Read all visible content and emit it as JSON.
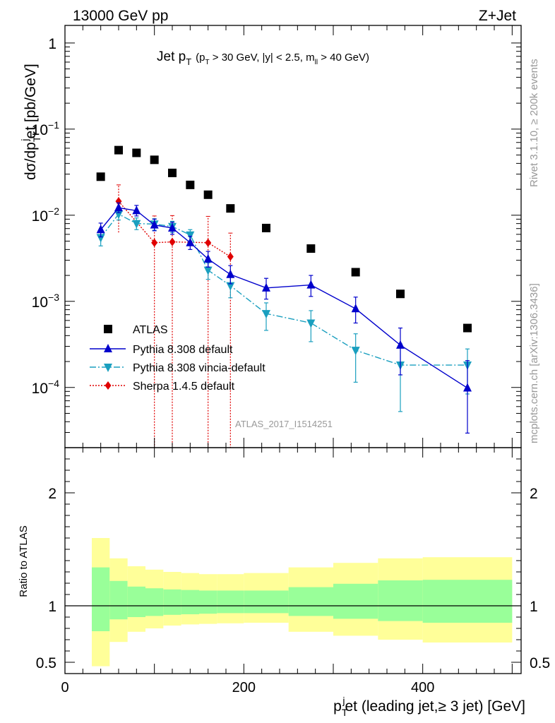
{
  "header": {
    "left": "13000 GeV pp",
    "right": "Z+Jet"
  },
  "side_text": {
    "rivet": "Rivet 3.1.10, ≥ 200k events",
    "mcplots": "mcplots.cern.ch [arXiv:1306.3436]"
  },
  "colors": {
    "atlas": "#000000",
    "pythia_default": "#0000cc",
    "pythia_vincia": "#1a9fbf",
    "sherpa": "#e00000",
    "band_inner": "#99ff99",
    "band_outer": "#ffff99"
  },
  "chart_data": {
    "type": "scatter",
    "title": {
      "main": "Jet p",
      "main_sub": "T",
      "cuts_a": "(p",
      "cuts_a_sub": "T",
      "cuts_b": " > 30 GeV, |y| < 2.5, m",
      "cuts_b_sub": "ll",
      "cuts_c": " > 40 GeV)"
    },
    "ylabel": {
      "a": "dσ/dp",
      "a_sub": "T",
      "a_sup": "j",
      "b": "et [pb/GeV]"
    },
    "xlabel": {
      "a": "p",
      "a_sub": "T",
      "a_sup": "j",
      "b": "et (leading jet,≥ 3 jet) [GeV]"
    },
    "ratio_ylabel": "Ratio to ATLAS",
    "watermark": "ATLAS_2017_I1514251",
    "xlim": [
      0,
      510
    ],
    "ylim": [
      2e-05,
      1.6
    ],
    "ratio_ylim": [
      0.4,
      2.4
    ],
    "yscale": "log",
    "x_ticks": [
      0,
      200,
      400
    ],
    "y_ticks": [
      {
        "v": 1,
        "base": "1",
        "exp": ""
      },
      {
        "v": 0.1,
        "base": "10",
        "exp": "−1"
      },
      {
        "v": 0.01,
        "base": "10",
        "exp": "−2"
      },
      {
        "v": 0.001,
        "base": "10",
        "exp": "−3"
      },
      {
        "v": 0.0001,
        "base": "10",
        "exp": "−4"
      }
    ],
    "ratio_ticks": [
      {
        "v": 2,
        "label": "2"
      },
      {
        "v": 1,
        "label": "1"
      },
      {
        "v": 0.5,
        "label": "0.5"
      }
    ],
    "bins": [
      [
        30,
        50
      ],
      [
        50,
        70
      ],
      [
        70,
        90
      ],
      [
        90,
        110
      ],
      [
        110,
        130
      ],
      [
        130,
        150
      ],
      [
        150,
        170
      ],
      [
        170,
        200
      ],
      [
        200,
        250
      ],
      [
        250,
        300
      ],
      [
        300,
        350
      ],
      [
        350,
        400
      ],
      [
        400,
        500
      ]
    ],
    "legend": {
      "placement": "lower-left",
      "entries": [
        "ATLAS",
        "Pythia 8.308 default",
        "Pythia 8.308 vincia-default",
        "Sherpa 1.4.5 default"
      ]
    },
    "series": [
      {
        "name": "ATLAS",
        "marker": "square",
        "x": [
          40,
          60,
          80,
          100,
          120,
          140,
          160,
          185,
          225,
          275,
          325,
          375,
          450
        ],
        "y": [
          0.028,
          0.057,
          0.053,
          0.044,
          0.031,
          0.0225,
          0.0173,
          0.012,
          0.0071,
          0.0041,
          0.00218,
          0.00122,
          0.00049
        ]
      },
      {
        "name": "Pythia 8.308 default",
        "marker": "triangle-up",
        "line": "solid",
        "x": [
          40,
          60,
          80,
          100,
          120,
          140,
          160,
          185,
          225,
          275,
          325,
          375,
          450
        ],
        "y": [
          0.0068,
          0.0122,
          0.0113,
          0.0077,
          0.0071,
          0.0048,
          0.0031,
          0.00205,
          0.00143,
          0.00155,
          0.00082,
          0.00031,
          9.85e-05
        ],
        "yerr_lo": [
          0.0056,
          0.0107,
          0.0098,
          0.0066,
          0.006,
          0.004,
          0.0025,
          0.0016,
          0.00106,
          0.00114,
          0.00056,
          0.00014,
          2.95e-05
        ],
        "yerr_hi": [
          0.0081,
          0.0139,
          0.013,
          0.009,
          0.0083,
          0.0057,
          0.0038,
          0.0026,
          0.00185,
          0.002,
          0.00112,
          0.00049,
          0.000205
        ]
      },
      {
        "name": "Pythia 8.308 vincia-default",
        "marker": "triangle-down",
        "line": "dashdot",
        "x": [
          40,
          60,
          80,
          100,
          120,
          140,
          160,
          185,
          225,
          275,
          325,
          375,
          450
        ],
        "y": [
          0.0055,
          0.0103,
          0.008,
          0.0079,
          0.0074,
          0.0059,
          0.0023,
          0.00152,
          0.00072,
          0.00056,
          0.00027,
          0.000182,
          0.000182
        ],
        "yerr_lo": [
          0.0044,
          0.0088,
          0.0068,
          0.0067,
          0.0063,
          0.005,
          0.0018,
          0.0011,
          0.00046,
          0.00034,
          0.000115,
          5.25e-05,
          8.4e-05
        ],
        "yerr_hi": [
          0.0067,
          0.0118,
          0.0093,
          0.0091,
          0.0085,
          0.0068,
          0.0028,
          0.0019,
          0.00096,
          0.00078,
          0.00042,
          0.00032,
          0.00028
        ]
      },
      {
        "name": "Sherpa 1.4.5 default",
        "marker": "diamond",
        "line": "dotted",
        "x": [
          60,
          100,
          120,
          160,
          185
        ],
        "y": [
          0.0145,
          0.0048,
          0.0049,
          0.0048,
          0.0033
        ],
        "yerr_lo": [
          0.0063,
          1e-05,
          1e-05,
          1e-05,
          1e-05
        ],
        "yerr_hi": [
          0.0225,
          0.0098,
          0.0099,
          0.0097,
          0.0062
        ],
        "xerr": [
          10,
          10,
          10,
          10,
          15
        ]
      }
    ],
    "ratio_bands": {
      "inner_lo": [
        0.775,
        0.88,
        0.9,
        0.91,
        0.92,
        0.925,
        0.93,
        0.935,
        0.935,
        0.91,
        0.885,
        0.865,
        0.85
      ],
      "inner_hi": [
        1.34,
        1.22,
        1.17,
        1.155,
        1.145,
        1.14,
        1.135,
        1.135,
        1.135,
        1.165,
        1.195,
        1.225,
        1.23
      ],
      "outer_lo": [
        0.465,
        0.68,
        0.77,
        0.8,
        0.825,
        0.835,
        0.84,
        0.845,
        0.85,
        0.77,
        0.735,
        0.7,
        0.675
      ],
      "outer_hi": [
        1.6,
        1.42,
        1.35,
        1.32,
        1.3,
        1.29,
        1.28,
        1.28,
        1.29,
        1.34,
        1.38,
        1.42,
        1.43
      ]
    }
  }
}
